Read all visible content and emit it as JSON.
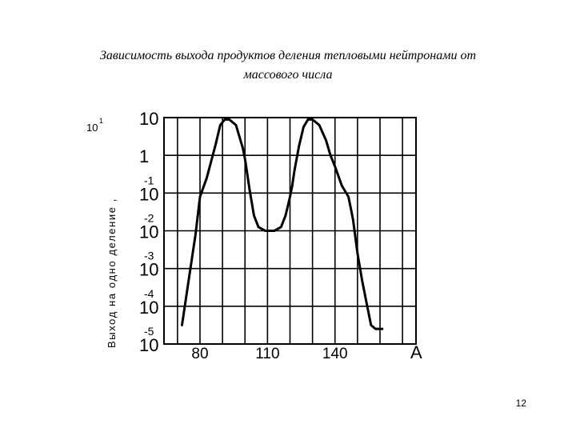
{
  "slide": {
    "title_line1": "Зависимость выхода продуктов деления тепловыми нейтронами от",
    "title_line2": "массового числа",
    "page_number": "12"
  },
  "chart_data": {
    "type": "line",
    "title": "Зависимость выхода продуктов деления тепловыми нейтронами от массового числа",
    "xlabel": "A",
    "ylabel": "Выход на одно деление ,",
    "y_unit_prefix": "10",
    "y_unit_exp": "1",
    "y_scale": "log",
    "grid": true,
    "xlim": [
      64,
      176
    ],
    "ylim_exponents": [
      -5,
      1
    ],
    "x_ticks": [
      80,
      110,
      140
    ],
    "y_ticks": [
      {
        "mantissa": "10",
        "exp": ""
      },
      {
        "mantissa": "1",
        "exp": ""
      },
      {
        "mantissa": "10",
        "exp": "-1"
      },
      {
        "mantissa": "10",
        "exp": "-2"
      },
      {
        "mantissa": "10",
        "exp": "-3"
      },
      {
        "mantissa": "10",
        "exp": "-4"
      },
      {
        "mantissa": "10",
        "exp": "-5"
      }
    ],
    "series": [
      {
        "x": [
          72,
          75,
          78,
          80,
          83,
          87,
          89,
          91,
          93,
          96,
          99,
          100,
          102,
          104,
          106,
          109,
          113,
          116,
          118,
          120,
          121,
          122,
          124,
          126,
          128,
          130,
          133,
          136,
          138,
          140,
          143,
          146,
          148,
          150,
          152,
          154,
          156,
          158,
          160,
          161
        ],
        "log10_y": [
          -4.5,
          -3.3,
          -2.1,
          -1.1,
          -0.6,
          0.3,
          0.8,
          0.95,
          0.95,
          0.8,
          0.2,
          -0.1,
          -0.9,
          -1.6,
          -1.9,
          -2.0,
          -2.0,
          -1.9,
          -1.6,
          -1.1,
          -0.8,
          -0.4,
          0.25,
          0.75,
          0.95,
          0.95,
          0.8,
          0.4,
          0.0,
          -0.3,
          -0.8,
          -1.1,
          -1.7,
          -2.6,
          -3.3,
          -3.9,
          -4.5,
          -4.6,
          -4.6,
          -4.6
        ]
      }
    ]
  }
}
